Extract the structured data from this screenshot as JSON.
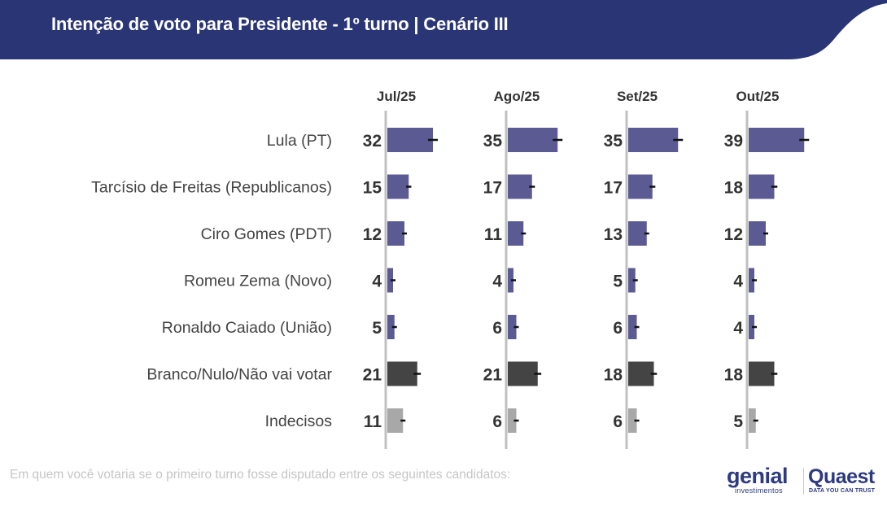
{
  "header": {
    "title": "Intenção de voto para Presidente - 1º turno | Cenário III",
    "background_color": "#2a3576"
  },
  "footnote": "Em quem você votaria se o primeiro turno fosse disputado entre os seguintes candidatos:",
  "logos": {
    "genial": "genial",
    "genial_sub": "investimentos",
    "quaest": "Quaest",
    "quaest_sub": "DATA YOU CAN TRUST"
  },
  "colors": {
    "candidate": "#5c5a92",
    "blank_null": "#444444",
    "undecided": "#a8a8a8",
    "axis": "#c0c0c0",
    "error_bar": "#111111"
  },
  "chart_data": {
    "type": "bar",
    "orientation": "horizontal",
    "title": "Intenção de voto para Presidente - 1º turno | Cenário III",
    "xlabel": "",
    "ylabel": "",
    "unit": "%",
    "grid": false,
    "legend": "none",
    "xlim": [
      0,
      45
    ],
    "error_bars": true,
    "categories": [
      "Lula (PT)",
      "Tarcísio de Freitas (Republicanos)",
      "Ciro Gomes (PDT)",
      "Romeu Zema (Novo)",
      "Ronaldo Caiado (União)",
      "Branco/Nulo/Não vai votar",
      "Indecisos"
    ],
    "category_groups": [
      "candidate",
      "candidate",
      "candidate",
      "candidate",
      "candidate",
      "blank_null",
      "undecided"
    ],
    "series": [
      {
        "name": "Jul/25",
        "values": [
          32,
          15,
          12,
          4,
          5,
          21,
          11
        ]
      },
      {
        "name": "Ago/25",
        "values": [
          35,
          17,
          11,
          4,
          6,
          21,
          6
        ]
      },
      {
        "name": "Set/25",
        "values": [
          35,
          17,
          13,
          5,
          6,
          18,
          6
        ]
      },
      {
        "name": "Out/25",
        "values": [
          39,
          18,
          12,
          4,
          4,
          18,
          5
        ]
      }
    ]
  }
}
